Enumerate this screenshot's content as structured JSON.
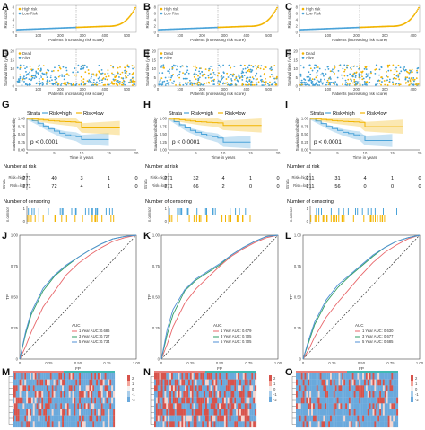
{
  "colors": {
    "high": "#f2b400",
    "low": "#4aa3d9",
    "dead_dot": "#f2b400",
    "alive_dot": "#3e9fd6",
    "auc1": "#e8666a",
    "auc3": "#2f9e63",
    "auc5": "#4f8fd6",
    "hm_red": "#d7534b",
    "hm_blue": "#6aa9dc",
    "hm_top_a": "#e87f7a",
    "hm_top_b": "#3fb9b2"
  },
  "chart_data": [
    {
      "id": "A",
      "type": "scatter",
      "label": "A",
      "xlabel": "Patients (increasing risk score)",
      "ylabel": "Risk score",
      "legend": [
        "High risk",
        "Low Risk"
      ],
      "x_ticks": [
        "0",
        "100",
        "200",
        "300",
        "400",
        "500"
      ],
      "y_ticks": [
        "0",
        "2",
        "4",
        "6",
        "8"
      ],
      "cutoff_index": 271,
      "n": 542,
      "ymax": 8.5
    },
    {
      "id": "B",
      "type": "scatter",
      "label": "B",
      "xlabel": "Patients (increasing risk score)",
      "ylabel": "Risk score",
      "legend": [
        "High risk",
        "Low Risk"
      ],
      "x_ticks": [
        "0",
        "100",
        "200",
        "300",
        "400",
        "500"
      ],
      "y_ticks": [
        "0",
        "2",
        "4",
        "6",
        "8"
      ],
      "cutoff_index": 271,
      "n": 542,
      "ymax": 8.5
    },
    {
      "id": "C",
      "type": "scatter",
      "label": "C",
      "xlabel": "Patients (increasing risk score)",
      "ylabel": "Risk score",
      "legend": [
        "High risk",
        "Low Risk"
      ],
      "x_ticks": [
        "0",
        "100",
        "200",
        "300",
        "400"
      ],
      "y_ticks": [
        "0",
        "2",
        "4",
        "6",
        "8"
      ],
      "cutoff_index": 211,
      "n": 422,
      "ymax": 8.5
    },
    {
      "id": "D",
      "type": "scatter",
      "label": "D",
      "xlabel": "Patients (increasing risk score)",
      "ylabel": "Survival time (years)",
      "legend": [
        "Dead",
        "Alive"
      ],
      "x_ticks": [
        "0",
        "100",
        "200",
        "300",
        "400",
        "500"
      ],
      "y_ticks": [
        "0",
        "5",
        "10",
        "15",
        "20"
      ],
      "cutoff_index": 271,
      "n": 542
    },
    {
      "id": "E",
      "type": "scatter",
      "label": "E",
      "xlabel": "Patients (increasing risk score)",
      "ylabel": "Survival time (years)",
      "legend": [
        "Dead",
        "Alive"
      ],
      "x_ticks": [
        "0",
        "100",
        "200",
        "300",
        "400",
        "500"
      ],
      "y_ticks": [
        "0",
        "5",
        "10",
        "15",
        "20"
      ],
      "cutoff_index": 271,
      "n": 542
    },
    {
      "id": "F",
      "type": "scatter",
      "label": "F",
      "xlabel": "Patients (increasing risk score)",
      "ylabel": "Survival time (years)",
      "legend": [
        "Dead",
        "Alive"
      ],
      "x_ticks": [
        "0",
        "100",
        "200",
        "300",
        "400"
      ],
      "y_ticks": [
        "0",
        "5",
        "10",
        "15",
        "20"
      ],
      "cutoff_index": 211,
      "n": 422
    },
    {
      "id": "G",
      "type": "line",
      "label": "G",
      "title": "",
      "xlabel": "Time in years",
      "ylabel": "Survival probability",
      "legend_title": "Strata",
      "legend": [
        "Risk=high",
        "Risk=low"
      ],
      "pvalue": "p < 0.0001",
      "x_ticks": [
        "0",
        "5",
        "10",
        "15",
        "20"
      ],
      "y_ticks": [
        "0.00",
        "0.25",
        "0.50",
        "0.75",
        "1.00"
      ],
      "xlim": [
        0,
        20
      ],
      "ylim": [
        0,
        1
      ],
      "series": [
        {
          "name": "Risk=high",
          "x": [
            0,
            1,
            2,
            3,
            4,
            5,
            6,
            7,
            8,
            9,
            10,
            12,
            15
          ],
          "y": [
            1.0,
            0.93,
            0.85,
            0.76,
            0.67,
            0.6,
            0.53,
            0.48,
            0.45,
            0.42,
            0.33,
            0.33,
            0.33
          ]
        },
        {
          "name": "Risk=low",
          "x": [
            0,
            1,
            2,
            3,
            4,
            5,
            6,
            7,
            8,
            9,
            10,
            12,
            17
          ],
          "y": [
            1.0,
            0.99,
            0.97,
            0.95,
            0.93,
            0.92,
            0.91,
            0.9,
            0.89,
            0.88,
            0.7,
            0.7,
            0.7
          ]
        }
      ],
      "risk_table": {
        "title": "Number at risk",
        "rows": [
          {
            "name": "Risk=high",
            "values": [
              "271",
              "40",
              "3",
              "1",
              "0"
            ]
          },
          {
            "name": "Risk=low",
            "values": [
              "271",
              "72",
              "4",
              "1",
              "0"
            ]
          }
        ]
      },
      "censoring_title": "Number of censoring",
      "censor_axis": "n.censor"
    },
    {
      "id": "H",
      "type": "line",
      "label": "H",
      "title": "",
      "xlabel": "Time in years",
      "ylabel": "Survival probability",
      "legend_title": "Strata",
      "legend": [
        "Risk=high",
        "Risk=low"
      ],
      "pvalue": "p < 0.0001",
      "x_ticks": [
        "0",
        "5",
        "10",
        "15",
        "20"
      ],
      "y_ticks": [
        "0.00",
        "0.25",
        "0.50",
        "0.75",
        "1.00"
      ],
      "xlim": [
        0,
        20
      ],
      "ylim": [
        0,
        1
      ],
      "series": [
        {
          "name": "Risk=high",
          "x": [
            0,
            1,
            2,
            3,
            4,
            5,
            6,
            7,
            8,
            9,
            10,
            12,
            15
          ],
          "y": [
            1.0,
            0.9,
            0.8,
            0.7,
            0.62,
            0.56,
            0.5,
            0.45,
            0.42,
            0.38,
            0.25,
            0.25,
            0.25
          ]
        },
        {
          "name": "Risk=low",
          "x": [
            0,
            1,
            2,
            3,
            4,
            5,
            6,
            7,
            8,
            9,
            10,
            12,
            17
          ],
          "y": [
            1.0,
            0.98,
            0.96,
            0.94,
            0.92,
            0.9,
            0.89,
            0.88,
            0.87,
            0.86,
            0.78,
            0.78,
            0.78
          ]
        }
      ],
      "risk_table": {
        "title": "Number at risk",
        "rows": [
          {
            "name": "Risk=high",
            "values": [
              "271",
              "32",
              "4",
              "1",
              "0"
            ]
          },
          {
            "name": "Risk=low",
            "values": [
              "271",
              "66",
              "2",
              "0",
              "0"
            ]
          }
        ]
      },
      "censoring_title": "Number of censoring",
      "censor_axis": "n.censor"
    },
    {
      "id": "I",
      "type": "line",
      "label": "I",
      "title": "",
      "xlabel": "Time in years",
      "ylabel": "Survival probability",
      "legend_title": "Strata",
      "legend": [
        "Risk=high",
        "Risk=low"
      ],
      "pvalue": "p < 0.0001",
      "x_ticks": [
        "0",
        "5",
        "10",
        "15",
        "20"
      ],
      "y_ticks": [
        "0.00",
        "0.25",
        "0.50",
        "0.75",
        "1.00"
      ],
      "xlim": [
        0,
        20
      ],
      "ylim": [
        0,
        1
      ],
      "series": [
        {
          "name": "Risk=high",
          "x": [
            0,
            1,
            2,
            3,
            4,
            5,
            6,
            7,
            8,
            9,
            10,
            12,
            15
          ],
          "y": [
            1.0,
            0.92,
            0.84,
            0.75,
            0.68,
            0.62,
            0.56,
            0.52,
            0.48,
            0.45,
            0.3,
            0.3,
            0.3
          ]
        },
        {
          "name": "Risk=low",
          "x": [
            0,
            1,
            2,
            3,
            4,
            5,
            6,
            7,
            8,
            9,
            10,
            12,
            17
          ],
          "y": [
            1.0,
            0.99,
            0.97,
            0.95,
            0.93,
            0.92,
            0.91,
            0.9,
            0.89,
            0.88,
            0.74,
            0.74,
            0.74
          ]
        }
      ],
      "risk_table": {
        "title": "Number at risk",
        "rows": [
          {
            "name": "Risk=high",
            "values": [
              "211",
              "31",
              "4",
              "1",
              "0"
            ]
          },
          {
            "name": "Risk=low",
            "values": [
              "211",
              "56",
              "0",
              "0",
              "0"
            ]
          }
        ]
      },
      "censoring_title": "Number of censoring",
      "censor_axis": "n.censor"
    },
    {
      "id": "J",
      "type": "line",
      "label": "J",
      "xlabel": "FP",
      "ylabel": "TP",
      "legend_title": "AUC",
      "x_ticks": [
        "0",
        "0.25",
        "0.50",
        "0.75",
        "1.00"
      ],
      "y_ticks": [
        "0",
        "0.25",
        "0.50",
        "0.75",
        "1.00"
      ],
      "xlim": [
        0,
        1
      ],
      "ylim": [
        0,
        1
      ],
      "series": [
        {
          "name": "1 Year AUC: 0.686",
          "x": [
            0,
            0.05,
            0.1,
            0.2,
            0.3,
            0.4,
            0.5,
            0.6,
            0.7,
            0.8,
            0.9,
            1.0
          ],
          "y": [
            0,
            0.1,
            0.22,
            0.42,
            0.55,
            0.68,
            0.77,
            0.84,
            0.9,
            0.95,
            0.98,
            1.0
          ]
        },
        {
          "name": "3 Year AUC: 0.727",
          "x": [
            0,
            0.05,
            0.1,
            0.2,
            0.3,
            0.4,
            0.5,
            0.6,
            0.7,
            0.8,
            0.9,
            1.0
          ],
          "y": [
            0,
            0.2,
            0.36,
            0.55,
            0.67,
            0.75,
            0.82,
            0.88,
            0.93,
            0.97,
            0.99,
            1.0
          ]
        },
        {
          "name": "5 Year AUC: 0.734",
          "x": [
            0,
            0.05,
            0.1,
            0.2,
            0.3,
            0.4,
            0.5,
            0.6,
            0.7,
            0.8,
            0.9,
            1.0
          ],
          "y": [
            0,
            0.22,
            0.38,
            0.57,
            0.68,
            0.76,
            0.82,
            0.88,
            0.93,
            0.97,
            0.99,
            1.0
          ]
        }
      ]
    },
    {
      "id": "K",
      "type": "line",
      "label": "K",
      "xlabel": "FP",
      "ylabel": "TP",
      "legend_title": "AUC",
      "x_ticks": [
        "0",
        "0.25",
        "0.50",
        "0.75",
        "1.00"
      ],
      "y_ticks": [
        "0",
        "0.25",
        "0.50",
        "0.75",
        "1.00"
      ],
      "xlim": [
        0,
        1
      ],
      "ylim": [
        0,
        1
      ],
      "series": [
        {
          "name": "1 Year AUC: 0.679",
          "x": [
            0,
            0.05,
            0.1,
            0.2,
            0.3,
            0.4,
            0.5,
            0.6,
            0.7,
            0.8,
            0.9,
            1.0
          ],
          "y": [
            0,
            0.12,
            0.26,
            0.45,
            0.57,
            0.66,
            0.75,
            0.83,
            0.89,
            0.94,
            0.98,
            1.0
          ]
        },
        {
          "name": "3 Year AUC: 0.705",
          "x": [
            0,
            0.05,
            0.1,
            0.2,
            0.3,
            0.4,
            0.5,
            0.6,
            0.7,
            0.8,
            0.9,
            1.0
          ],
          "y": [
            0,
            0.2,
            0.36,
            0.55,
            0.64,
            0.7,
            0.76,
            0.84,
            0.9,
            0.95,
            0.99,
            1.0
          ]
        },
        {
          "name": "5 Year AUC: 0.705",
          "x": [
            0,
            0.05,
            0.1,
            0.2,
            0.3,
            0.4,
            0.5,
            0.6,
            0.7,
            0.8,
            0.9,
            1.0
          ],
          "y": [
            0,
            0.24,
            0.4,
            0.56,
            0.65,
            0.71,
            0.77,
            0.84,
            0.9,
            0.95,
            0.99,
            1.0
          ]
        }
      ]
    },
    {
      "id": "L",
      "type": "line",
      "label": "L",
      "xlabel": "FP",
      "ylabel": "TP",
      "legend_title": "AUC",
      "x_ticks": [
        "0",
        "0.25",
        "0.50",
        "0.75",
        "1.00"
      ],
      "y_ticks": [
        "0",
        "0.25",
        "0.50",
        "0.75",
        "1.00"
      ],
      "xlim": [
        0,
        1
      ],
      "ylim": [
        0,
        1
      ],
      "series": [
        {
          "name": "1 Year AUC: 0.630",
          "x": [
            0,
            0.05,
            0.1,
            0.2,
            0.3,
            0.4,
            0.5,
            0.6,
            0.7,
            0.8,
            0.9,
            1.0
          ],
          "y": [
            0,
            0.08,
            0.18,
            0.34,
            0.46,
            0.57,
            0.68,
            0.78,
            0.86,
            0.92,
            0.97,
            1.0
          ]
        },
        {
          "name": "3 Year AUC: 0.677",
          "x": [
            0,
            0.05,
            0.1,
            0.2,
            0.3,
            0.4,
            0.5,
            0.6,
            0.7,
            0.8,
            0.9,
            1.0
          ],
          "y": [
            0,
            0.14,
            0.28,
            0.46,
            0.58,
            0.67,
            0.75,
            0.83,
            0.9,
            0.95,
            0.98,
            1.0
          ]
        },
        {
          "name": "5 Year AUC: 0.685",
          "x": [
            0,
            0.05,
            0.1,
            0.2,
            0.3,
            0.4,
            0.5,
            0.6,
            0.7,
            0.8,
            0.9,
            1.0
          ],
          "y": [
            0,
            0.16,
            0.3,
            0.48,
            0.6,
            0.68,
            0.76,
            0.84,
            0.9,
            0.95,
            0.98,
            1.0
          ]
        }
      ]
    },
    {
      "id": "M",
      "type": "heatmap",
      "label": "M",
      "rows": 9,
      "cols": 60,
      "legend_values": [
        "2",
        "1",
        "0",
        "-1",
        "-2"
      ]
    },
    {
      "id": "N",
      "type": "heatmap",
      "label": "N",
      "rows": 9,
      "cols": 60,
      "legend_values": [
        "2",
        "1",
        "0",
        "-1",
        "-2"
      ]
    },
    {
      "id": "O",
      "type": "heatmap",
      "label": "O",
      "rows": 9,
      "cols": 60,
      "legend_values": [
        "2",
        "1",
        "0",
        "-1",
        "-2"
      ]
    }
  ]
}
